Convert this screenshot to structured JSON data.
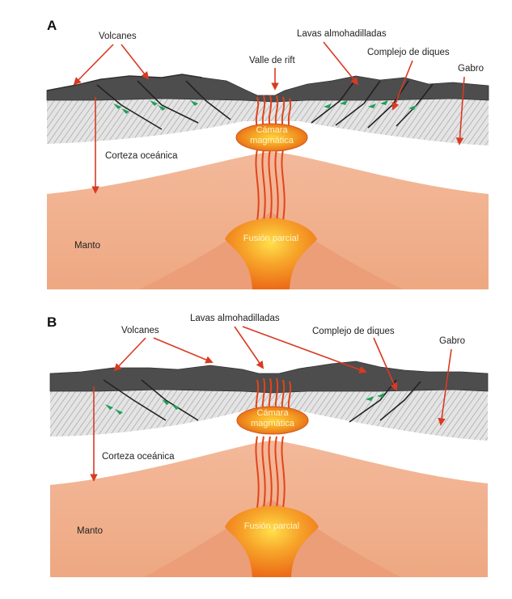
{
  "panel_a": {
    "letter": "A",
    "labels": {
      "volcanes": "Volcanes",
      "lavas": "Lavas almohadilladas",
      "valle_rift": "Valle de rift",
      "complejo_diques": "Complejo de diques",
      "gabro": "Gabro",
      "camara_line1": "Cámara",
      "camara_line2": "magmática",
      "corteza": "Corteza oceánica",
      "manto": "Manto",
      "fusion": "Fusión parcial"
    }
  },
  "panel_b": {
    "letter": "B",
    "labels": {
      "volcanes": "Volcanes",
      "lavas": "Lavas almohadilladas",
      "complejo_diques": "Complejo de diques",
      "gabro": "Gabro",
      "camara_line1": "Cámara",
      "camara_line2": "magmática",
      "corteza": "Corteza oceánica",
      "manto": "Manto",
      "fusion": "Fusión parcial"
    }
  },
  "colors": {
    "arrow": "#d93a22",
    "mantle": "#f0b190",
    "mantle_inner": "#e9a27e",
    "crust_dark": "#4d4d4d",
    "magma": "#f07a1a",
    "magma_core": "#ffd23a",
    "dike_green": "#1fa055"
  }
}
